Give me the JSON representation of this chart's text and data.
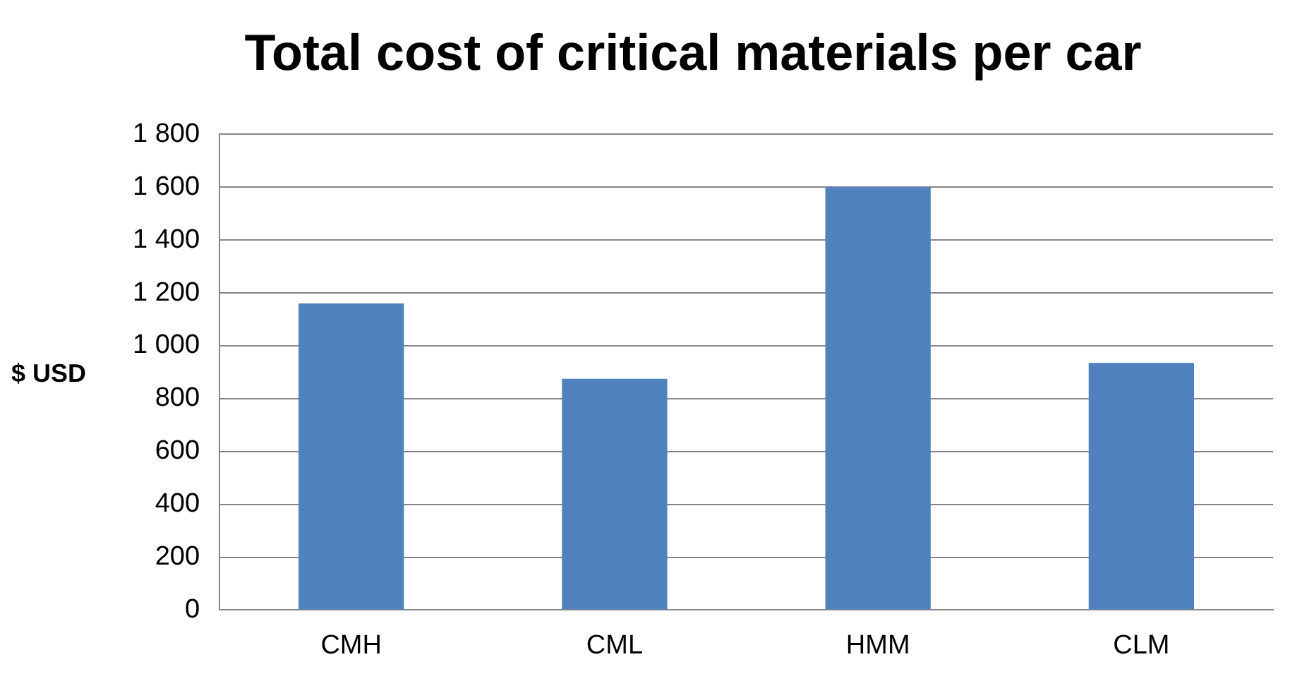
{
  "chart_data": {
    "type": "bar",
    "title": "Total cost of critical materials per car",
    "ylabel": "$ USD",
    "categories": [
      "CMH",
      "CML",
      "HMM",
      "CLM"
    ],
    "values": [
      1160,
      875,
      1600,
      935
    ],
    "color": "#4f81bd",
    "ylim": [
      0,
      1800
    ],
    "yticks": [
      0,
      200,
      400,
      600,
      800,
      {
        "value": 1000,
        "label": "1 000"
      },
      {
        "value": 1200,
        "label": "1 200"
      },
      {
        "value": 1400,
        "label": "1 400"
      },
      {
        "value": 1600,
        "label": "1 600"
      },
      {
        "value": 1800,
        "label": "1 800"
      }
    ],
    "grid": "y",
    "legend": false
  }
}
